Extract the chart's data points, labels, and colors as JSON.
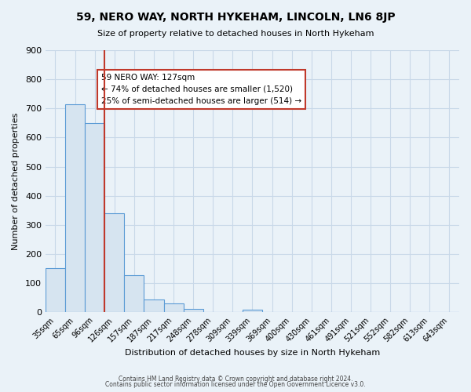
{
  "title": "59, NERO WAY, NORTH HYKEHAM, LINCOLN, LN6 8JP",
  "subtitle": "Size of property relative to detached houses in North Hykeham",
  "xlabel": "Distribution of detached houses by size in North Hykeham",
  "ylabel": "Number of detached properties",
  "categories": [
    "35sqm",
    "65sqm",
    "96sqm",
    "126sqm",
    "157sqm",
    "187sqm",
    "217sqm",
    "248sqm",
    "278sqm",
    "309sqm",
    "339sqm",
    "369sqm",
    "400sqm",
    "430sqm",
    "461sqm",
    "491sqm",
    "521sqm",
    "552sqm",
    "582sqm",
    "613sqm",
    "643sqm"
  ],
  "bar_values": [
    150,
    715,
    650,
    340,
    128,
    43,
    30,
    12,
    0,
    0,
    8,
    0,
    0,
    0,
    0,
    0,
    0,
    0,
    0,
    0,
    0
  ],
  "bar_color_fill": "#d6e4f0",
  "bar_color_edge": "#5b9bd5",
  "property_line_x": 3,
  "property_line_label": "59 NERO WAY: 127sqm",
  "annotation_line1": "← 74% of detached houses are smaller (1,520)",
  "annotation_line2": "25% of semi-detached houses are larger (514) →",
  "annotation_box_color": "#ffffff",
  "annotation_box_edgecolor": "#c0392b",
  "vline_color": "#c0392b",
  "ylim": [
    0,
    900
  ],
  "yticks": [
    0,
    100,
    200,
    300,
    400,
    500,
    600,
    700,
    800,
    900
  ],
  "grid_color": "#c8d8e8",
  "bg_color": "#eaf2f8",
  "footer1": "Contains HM Land Registry data © Crown copyright and database right 2024.",
  "footer2": "Contains public sector information licensed under the Open Government Licence v3.0."
}
